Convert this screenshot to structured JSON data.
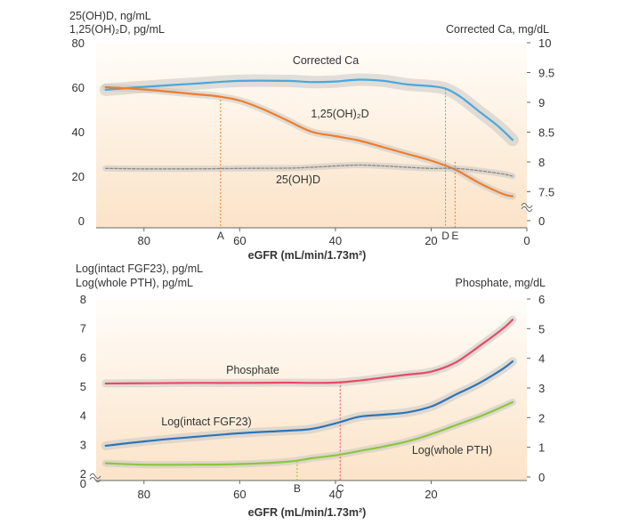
{
  "colors": {
    "ca": "#4aa8dc",
    "d125": "#ee7d2a",
    "d25": "#8a8a8a",
    "phos": "#e84a62",
    "fgf": "#2d74b8",
    "pth": "#8cc63f",
    "bg_top": "#fffdf9",
    "bg_bottom": "#fbe3c8",
    "band": "#c9c6c2"
  },
  "chart_data": [
    {
      "type": "line",
      "panel": "top",
      "x_reversed": true,
      "xlim": [
        90,
        0
      ],
      "xticks": [
        80,
        60,
        40,
        20,
        0
      ],
      "xlabel": "eGFR (mL/min/1.73m²)",
      "ylabel_left": [
        "25(OH)D, ng/mL",
        "1,25(OH)₂D, pg/mL"
      ],
      "ylim_left": [
        0,
        80
      ],
      "yticks_left": [
        0,
        20,
        40,
        60,
        80
      ],
      "ylabel_right": "Corrected Ca, mg/dL",
      "yticks_right": [
        {
          "value": 0,
          "label": "0"
        },
        {
          "value": 7.5,
          "label": "7.5"
        },
        {
          "value": 8,
          "label": "8"
        },
        {
          "value": 8.5,
          "label": "8.5"
        },
        {
          "value": 9,
          "label": "9"
        },
        {
          "value": 9.5,
          "label": "9.5"
        },
        {
          "value": 10,
          "label": "10"
        }
      ],
      "right_axis_break": true,
      "series": [
        {
          "name": "Corrected Ca",
          "axis": "right",
          "color_key": "ca",
          "x": [
            88,
            80,
            70,
            60,
            50,
            45,
            40,
            35,
            30,
            25,
            20,
            17,
            14,
            10,
            6,
            3
          ],
          "y": [
            9.21,
            9.26,
            9.31,
            9.36,
            9.36,
            9.34,
            9.35,
            9.38,
            9.36,
            9.3,
            9.27,
            9.23,
            9.1,
            8.85,
            8.6,
            8.37
          ]
        },
        {
          "name": "1,25(OH)₂D",
          "axis": "left",
          "color_key": "d125",
          "x": [
            88,
            80,
            70,
            65,
            60,
            55,
            50,
            45,
            40,
            35,
            30,
            25,
            20,
            15,
            10,
            5,
            3
          ],
          "y": [
            60,
            59,
            57,
            56,
            54,
            50,
            45,
            40,
            38,
            36,
            33,
            30,
            27,
            23,
            17,
            12,
            11
          ]
        },
        {
          "name": "25(OH)D",
          "axis": "left",
          "color_key": "d25",
          "x": [
            88,
            80,
            70,
            60,
            50,
            45,
            40,
            35,
            30,
            25,
            20,
            15,
            10,
            5,
            3
          ],
          "y": [
            23.5,
            23.3,
            23.3,
            23.5,
            23.6,
            24,
            24.6,
            25,
            24.6,
            24,
            23.5,
            23.5,
            22.5,
            21,
            20
          ]
        }
      ],
      "markers": [
        {
          "label": "A",
          "x": 64,
          "series": "1,25(OH)₂D",
          "y": 56,
          "axis": "left",
          "color_key": "d125"
        },
        {
          "label": "D",
          "x": 17,
          "series": "Corrected Ca",
          "y": 9.23,
          "axis": "right",
          "color_key": "ca"
        },
        {
          "label": "E",
          "x": 15,
          "series": "1,25(OH)₂D",
          "y": 26.5,
          "axis": "left",
          "color_key": "d125"
        }
      ]
    },
    {
      "type": "line",
      "panel": "bottom",
      "x_reversed": true,
      "xlim": [
        90,
        0
      ],
      "xticks": [
        80,
        60,
        40,
        20
      ],
      "xlabel": "eGFR (mL/min/1.73m²)",
      "ylabel_left": [
        "Log(intact FGF23), pg/mL",
        "Log(whole PTH), pg/mL"
      ],
      "ylim_left": [
        2,
        8
      ],
      "yticks_left": [
        2,
        3,
        4,
        5,
        6,
        7,
        8
      ],
      "left_zero_label": "0",
      "left_axis_break": true,
      "ylabel_right": "Phosphate, mg/dL",
      "ylim_right": [
        0,
        6
      ],
      "yticks_right": [
        0,
        1,
        2,
        3,
        4,
        5,
        6
      ],
      "series": [
        {
          "name": "Phosphate",
          "axis": "right",
          "color_key": "phos",
          "x": [
            88,
            80,
            70,
            60,
            50,
            45,
            40,
            35,
            30,
            25,
            20,
            15,
            10,
            5,
            3
          ],
          "y": [
            3.15,
            3.16,
            3.17,
            3.17,
            3.18,
            3.17,
            3.18,
            3.25,
            3.35,
            3.45,
            3.55,
            3.85,
            4.4,
            5,
            5.3
          ]
        },
        {
          "name": "Log(intact FGF23)",
          "axis": "left",
          "color_key": "fgf",
          "x": [
            88,
            80,
            70,
            60,
            50,
            45,
            40,
            35,
            30,
            25,
            20,
            15,
            10,
            5,
            3
          ],
          "y": [
            2.95,
            3.1,
            3.25,
            3.38,
            3.47,
            3.53,
            3.72,
            3.95,
            4.02,
            4.1,
            4.3,
            4.7,
            5.1,
            5.6,
            5.85
          ]
        },
        {
          "name": "Log(whole PTH)",
          "axis": "left",
          "color_key": "pth",
          "x": [
            88,
            80,
            70,
            60,
            50,
            45,
            40,
            35,
            30,
            25,
            20,
            15,
            10,
            5,
            3
          ],
          "y": [
            2.35,
            2.3,
            2.3,
            2.32,
            2.4,
            2.52,
            2.62,
            2.77,
            2.92,
            3.1,
            3.35,
            3.65,
            3.95,
            4.3,
            4.45
          ]
        }
      ],
      "markers": [
        {
          "label": "B",
          "x": 48,
          "series": "Log(whole PTH)",
          "y": 2.43,
          "axis": "left",
          "color_key": "pth"
        },
        {
          "label": "C",
          "x": 39,
          "series": "Phosphate",
          "y": 3.2,
          "axis": "right",
          "color_key": "phos"
        }
      ]
    }
  ]
}
